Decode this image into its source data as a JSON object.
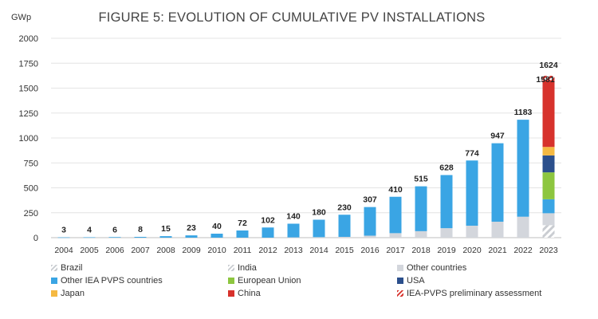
{
  "chart_data": {
    "type": "bar",
    "title": "FIGURE 5: EVOLUTION OF CUMULATIVE PV INSTALLATIONS",
    "ylabel": "GWp",
    "xlabel": "",
    "ylim": [
      0,
      2000
    ],
    "yticks": [
      "0",
      "250",
      "500",
      "750",
      "1000",
      "1250",
      "1500",
      "1750",
      "2000"
    ],
    "grid": true,
    "legend_position": "bottom",
    "categories": [
      "2004",
      "2005",
      "2006",
      "2007",
      "2008",
      "2009",
      "2010",
      "2011",
      "2012",
      "2013",
      "2014",
      "2015",
      "2016",
      "2017",
      "2018",
      "2019",
      "2020",
      "2021",
      "2022",
      "2023"
    ],
    "totals": [
      3,
      4,
      6,
      8,
      15,
      23,
      40,
      72,
      102,
      140,
      180,
      230,
      307,
      410,
      515,
      628,
      774,
      947,
      1183,
      1581
    ],
    "total_labels": [
      "3",
      "4",
      "6",
      "8",
      "15",
      "23",
      "40",
      "72",
      "102",
      "140",
      "180",
      "230",
      "307",
      "410",
      "515",
      "628",
      "774",
      "947",
      "1183",
      "1581"
    ],
    "preliminary_2023_total": 1624,
    "preliminary_label": "1624",
    "series": [
      {
        "name": "Brazil",
        "color": "#c9ccd1",
        "pattern": "hatch",
        "values": [
          0,
          0,
          0,
          0,
          0,
          0,
          0,
          0,
          0,
          0,
          0,
          0,
          0,
          0,
          0,
          0,
          0,
          0,
          0,
          35
        ]
      },
      {
        "name": "India",
        "color": "#c9ccd1",
        "pattern": "hatch",
        "values": [
          0,
          0,
          0,
          0,
          0,
          0,
          0,
          0,
          0,
          0,
          0,
          0,
          0,
          0,
          0,
          0,
          0,
          0,
          0,
          90
        ]
      },
      {
        "name": "Other countries",
        "color": "#d3d6dc",
        "values": [
          0,
          0,
          0,
          0,
          0,
          0,
          0,
          0,
          0,
          3,
          5,
          8,
          20,
          45,
          65,
          95,
          120,
          160,
          210,
          120
        ]
      },
      {
        "name": "Other IEA PVPS countries",
        "color": "#3aa5e4",
        "values": [
          3,
          4,
          6,
          8,
          15,
          23,
          40,
          72,
          102,
          137,
          175,
          222,
          287,
          365,
          450,
          533,
          654,
          787,
          973,
          140
        ]
      },
      {
        "name": "European Union",
        "color": "#8dc63f",
        "values": [
          0,
          0,
          0,
          0,
          0,
          0,
          0,
          0,
          0,
          0,
          0,
          0,
          0,
          0,
          0,
          0,
          0,
          0,
          0,
          270
        ]
      },
      {
        "name": "USA",
        "color": "#2b4f8c",
        "values": [
          0,
          0,
          0,
          0,
          0,
          0,
          0,
          0,
          0,
          0,
          0,
          0,
          0,
          0,
          0,
          0,
          0,
          0,
          0,
          170
        ]
      },
      {
        "name": "Japan",
        "color": "#f5b942",
        "values": [
          0,
          0,
          0,
          0,
          0,
          0,
          0,
          0,
          0,
          0,
          0,
          0,
          0,
          0,
          0,
          0,
          0,
          0,
          0,
          85
        ]
      },
      {
        "name": "China",
        "color": "#d7322c",
        "values": [
          0,
          0,
          0,
          0,
          0,
          0,
          0,
          0,
          0,
          0,
          0,
          0,
          0,
          0,
          0,
          0,
          0,
          0,
          0,
          671
        ]
      },
      {
        "name": "IEA-PVPS preliminary assessment",
        "color": "#d7322c",
        "pattern": "hatch",
        "values": [
          0,
          0,
          0,
          0,
          0,
          0,
          0,
          0,
          0,
          0,
          0,
          0,
          0,
          0,
          0,
          0,
          0,
          0,
          0,
          43
        ]
      }
    ]
  }
}
